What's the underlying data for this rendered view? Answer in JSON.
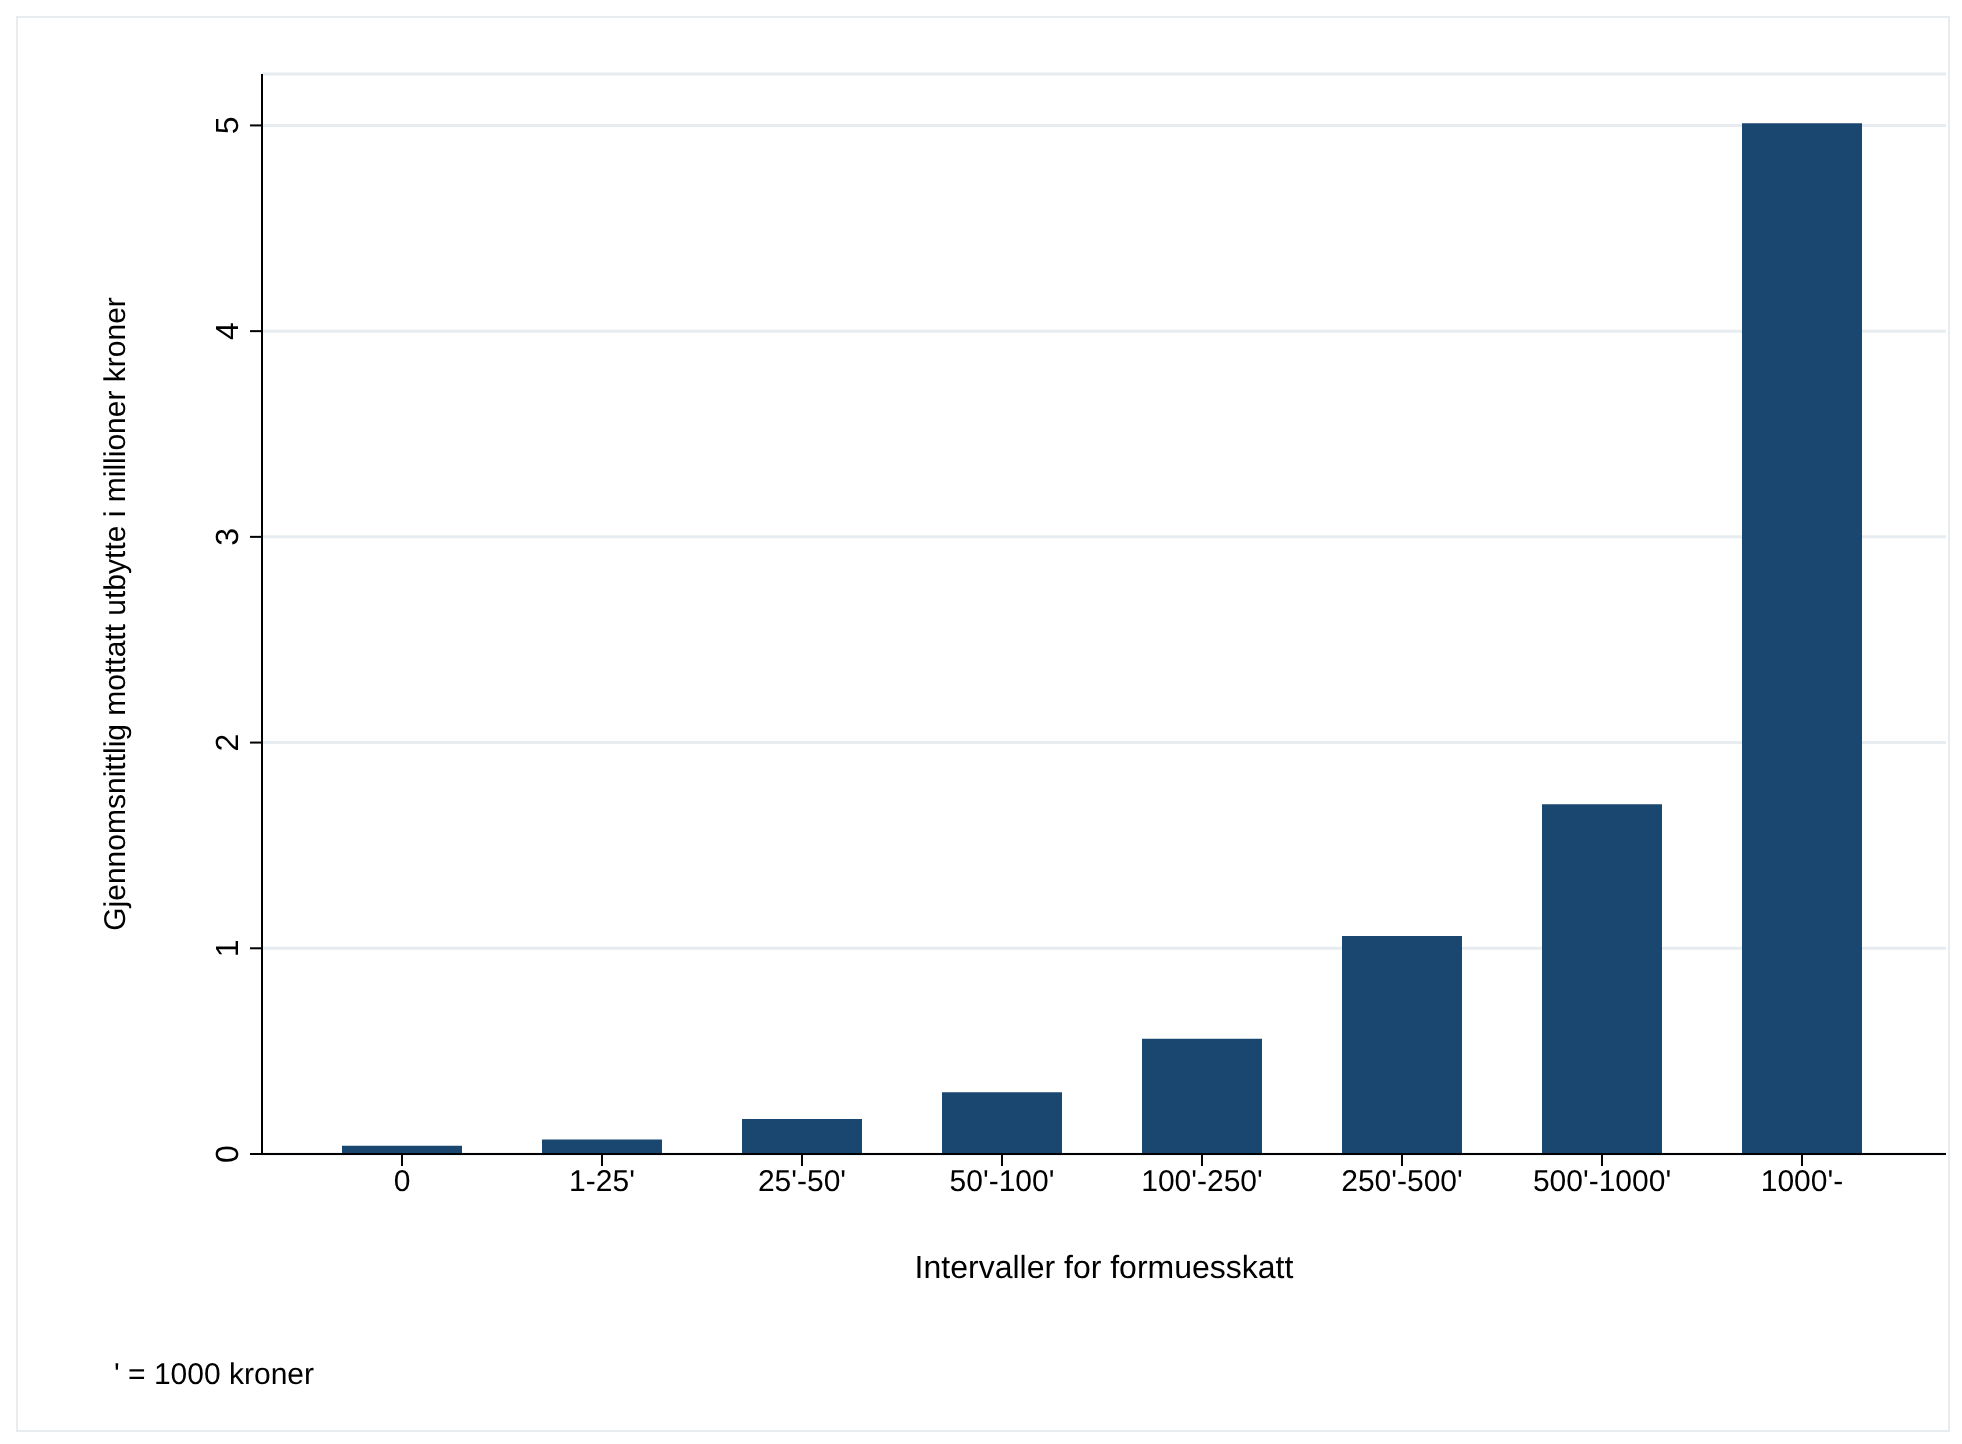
{
  "chart_data": {
    "type": "bar",
    "xlabel": "Intervaller for formuesskatt",
    "ylabel": "Gjennomsnittlig mottatt utbytte i millioner kroner",
    "categories": [
      "0",
      "1-25'",
      "25'-50'",
      "50'-100'",
      "100'-250'",
      "250'-500'",
      "500'-1000'",
      "1000'-"
    ],
    "values": [
      0.04,
      0.07,
      0.17,
      0.3,
      0.56,
      1.06,
      1.7,
      5.01
    ],
    "color": "#1a476f",
    "ylim": [
      0,
      5.25
    ],
    "yticks": [
      0,
      1,
      2,
      3,
      4,
      5
    ],
    "grid": "y",
    "annotations": [
      "' = 1000 kroner"
    ]
  }
}
